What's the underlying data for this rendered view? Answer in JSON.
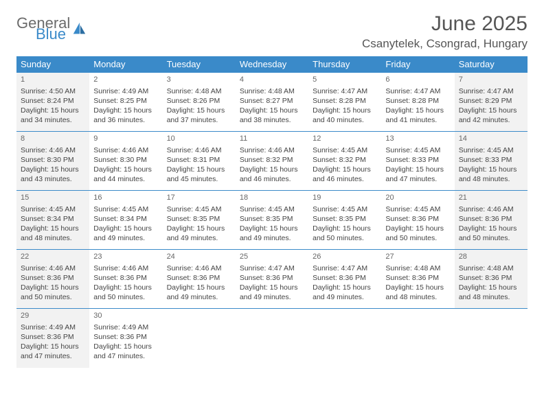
{
  "brand": {
    "general": "General",
    "blue": "Blue"
  },
  "title": "June 2025",
  "location": "Csanytelek, Csongrad, Hungary",
  "colors": {
    "header_bg": "#3a8ac9",
    "header_fg": "#ffffff",
    "rule": "#3a8ac9",
    "shaded_bg": "#f2f2f2",
    "text": "#444444",
    "title_color": "#555555"
  },
  "weekdays": [
    "Sunday",
    "Monday",
    "Tuesday",
    "Wednesday",
    "Thursday",
    "Friday",
    "Saturday"
  ],
  "weeks": [
    [
      {
        "n": "1",
        "shaded": true,
        "rise": "4:50 AM",
        "set": "8:24 PM",
        "dl": "15 hours and 34 minutes."
      },
      {
        "n": "2",
        "shaded": false,
        "rise": "4:49 AM",
        "set": "8:25 PM",
        "dl": "15 hours and 36 minutes."
      },
      {
        "n": "3",
        "shaded": false,
        "rise": "4:48 AM",
        "set": "8:26 PM",
        "dl": "15 hours and 37 minutes."
      },
      {
        "n": "4",
        "shaded": false,
        "rise": "4:48 AM",
        "set": "8:27 PM",
        "dl": "15 hours and 38 minutes."
      },
      {
        "n": "5",
        "shaded": false,
        "rise": "4:47 AM",
        "set": "8:28 PM",
        "dl": "15 hours and 40 minutes."
      },
      {
        "n": "6",
        "shaded": false,
        "rise": "4:47 AM",
        "set": "8:28 PM",
        "dl": "15 hours and 41 minutes."
      },
      {
        "n": "7",
        "shaded": true,
        "rise": "4:47 AM",
        "set": "8:29 PM",
        "dl": "15 hours and 42 minutes."
      }
    ],
    [
      {
        "n": "8",
        "shaded": true,
        "rise": "4:46 AM",
        "set": "8:30 PM",
        "dl": "15 hours and 43 minutes."
      },
      {
        "n": "9",
        "shaded": false,
        "rise": "4:46 AM",
        "set": "8:30 PM",
        "dl": "15 hours and 44 minutes."
      },
      {
        "n": "10",
        "shaded": false,
        "rise": "4:46 AM",
        "set": "8:31 PM",
        "dl": "15 hours and 45 minutes."
      },
      {
        "n": "11",
        "shaded": false,
        "rise": "4:46 AM",
        "set": "8:32 PM",
        "dl": "15 hours and 46 minutes."
      },
      {
        "n": "12",
        "shaded": false,
        "rise": "4:45 AM",
        "set": "8:32 PM",
        "dl": "15 hours and 46 minutes."
      },
      {
        "n": "13",
        "shaded": false,
        "rise": "4:45 AM",
        "set": "8:33 PM",
        "dl": "15 hours and 47 minutes."
      },
      {
        "n": "14",
        "shaded": true,
        "rise": "4:45 AM",
        "set": "8:33 PM",
        "dl": "15 hours and 48 minutes."
      }
    ],
    [
      {
        "n": "15",
        "shaded": true,
        "rise": "4:45 AM",
        "set": "8:34 PM",
        "dl": "15 hours and 48 minutes."
      },
      {
        "n": "16",
        "shaded": false,
        "rise": "4:45 AM",
        "set": "8:34 PM",
        "dl": "15 hours and 49 minutes."
      },
      {
        "n": "17",
        "shaded": false,
        "rise": "4:45 AM",
        "set": "8:35 PM",
        "dl": "15 hours and 49 minutes."
      },
      {
        "n": "18",
        "shaded": false,
        "rise": "4:45 AM",
        "set": "8:35 PM",
        "dl": "15 hours and 49 minutes."
      },
      {
        "n": "19",
        "shaded": false,
        "rise": "4:45 AM",
        "set": "8:35 PM",
        "dl": "15 hours and 50 minutes."
      },
      {
        "n": "20",
        "shaded": false,
        "rise": "4:45 AM",
        "set": "8:36 PM",
        "dl": "15 hours and 50 minutes."
      },
      {
        "n": "21",
        "shaded": true,
        "rise": "4:46 AM",
        "set": "8:36 PM",
        "dl": "15 hours and 50 minutes."
      }
    ],
    [
      {
        "n": "22",
        "shaded": true,
        "rise": "4:46 AM",
        "set": "8:36 PM",
        "dl": "15 hours and 50 minutes."
      },
      {
        "n": "23",
        "shaded": false,
        "rise": "4:46 AM",
        "set": "8:36 PM",
        "dl": "15 hours and 50 minutes."
      },
      {
        "n": "24",
        "shaded": false,
        "rise": "4:46 AM",
        "set": "8:36 PM",
        "dl": "15 hours and 49 minutes."
      },
      {
        "n": "25",
        "shaded": false,
        "rise": "4:47 AM",
        "set": "8:36 PM",
        "dl": "15 hours and 49 minutes."
      },
      {
        "n": "26",
        "shaded": false,
        "rise": "4:47 AM",
        "set": "8:36 PM",
        "dl": "15 hours and 49 minutes."
      },
      {
        "n": "27",
        "shaded": false,
        "rise": "4:48 AM",
        "set": "8:36 PM",
        "dl": "15 hours and 48 minutes."
      },
      {
        "n": "28",
        "shaded": true,
        "rise": "4:48 AM",
        "set": "8:36 PM",
        "dl": "15 hours and 48 minutes."
      }
    ],
    [
      {
        "n": "29",
        "shaded": true,
        "rise": "4:49 AM",
        "set": "8:36 PM",
        "dl": "15 hours and 47 minutes."
      },
      {
        "n": "30",
        "shaded": false,
        "rise": "4:49 AM",
        "set": "8:36 PM",
        "dl": "15 hours and 47 minutes."
      },
      null,
      null,
      null,
      null,
      null
    ]
  ],
  "labels": {
    "sunrise": "Sunrise: ",
    "sunset": "Sunset: ",
    "daylight": "Daylight: "
  }
}
